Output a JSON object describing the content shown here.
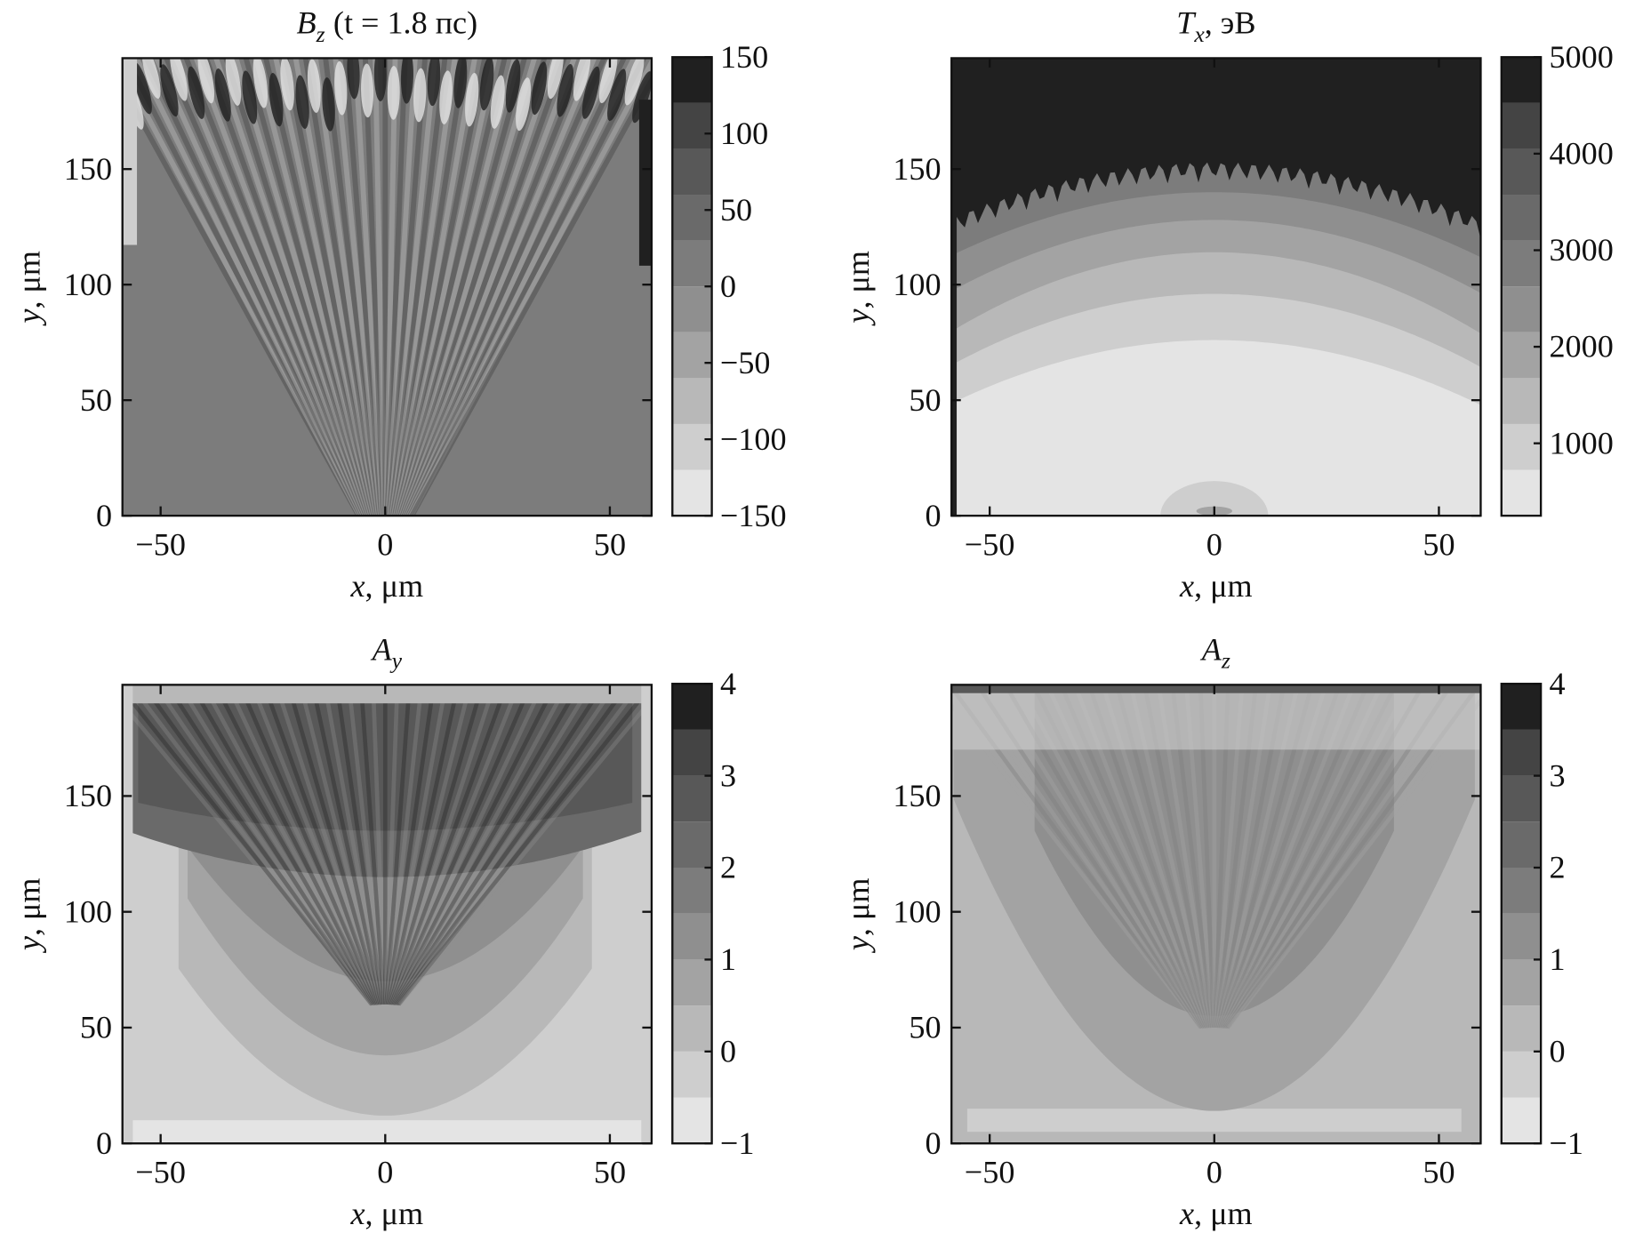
{
  "chart_data": [
    {
      "type": "heatmap",
      "title": {
        "symbol": "B",
        "subscript": "z",
        "text": "(t = 1.8 пс)"
      },
      "xlabel": {
        "symbol": "x",
        "text": ", μm"
      },
      "ylabel": {
        "symbol": "y",
        "text": ", μm"
      },
      "xlim": [
        -58.5,
        59.3
      ],
      "ylim": [
        0,
        198
      ],
      "xticks": [
        {
          "value": -50,
          "label": "−50"
        },
        0,
        50
      ],
      "yticks": [
        0,
        50,
        100,
        150
      ],
      "colorbar": {
        "levels": [
          -150,
          -120,
          -90,
          -60,
          -30,
          0,
          30,
          60,
          90,
          120,
          150
        ],
        "colors": [
          "#e4e4e4",
          "#cecece",
          "#b8b8b8",
          "#a3a3a3",
          "#8f8f8f",
          "#7c7c7c",
          "#6a6a6a",
          "#585858",
          "#444444",
          "#202020"
        ],
        "ticks": [
          150,
          100,
          50,
          0,
          {
            "value": -50,
            "label": "−50"
          },
          {
            "value": -100,
            "label": "−100"
          },
          {
            "value": -150,
            "label": "−150"
          }
        ]
      }
    },
    {
      "type": "heatmap",
      "title": {
        "symbol": "T",
        "subscript": "x",
        "text": ", эВ"
      },
      "xlabel": {
        "symbol": "x",
        "text": ", μm"
      },
      "ylabel": {
        "symbol": "y",
        "text": ", μm"
      },
      "xlim": [
        -58.5,
        59.3
      ],
      "ylim": [
        0,
        198
      ],
      "xticks": [
        {
          "value": -50,
          "label": "−50"
        },
        0,
        50
      ],
      "yticks": [
        0,
        50,
        100,
        150
      ],
      "colorbar": {
        "levels": [
          250,
          725,
          1200,
          1675,
          2150,
          2625,
          3100,
          3575,
          4050,
          4525,
          5000
        ],
        "colors": [
          "#e4e4e4",
          "#cecece",
          "#b8b8b8",
          "#a3a3a3",
          "#8f8f8f",
          "#7c7c7c",
          "#6a6a6a",
          "#585858",
          "#444444",
          "#202020"
        ],
        "ticks": [
          5000,
          4000,
          3000,
          2000,
          1000
        ]
      }
    },
    {
      "type": "heatmap",
      "title": {
        "symbol": "A",
        "subscript": "y"
      },
      "xlabel": {
        "symbol": "x",
        "text": ", μm"
      },
      "ylabel": {
        "symbol": "y",
        "text": ", μm"
      },
      "xlim": [
        -58.5,
        59.3
      ],
      "ylim": [
        0,
        198
      ],
      "xticks": [
        {
          "value": -50,
          "label": "−50"
        },
        0,
        50
      ],
      "yticks": [
        0,
        50,
        100,
        150
      ],
      "colorbar": {
        "levels": [
          -1,
          -0.5,
          0,
          0.5,
          1,
          1.5,
          2,
          2.5,
          3,
          3.5,
          4
        ],
        "colors": [
          "#e4e4e4",
          "#cecece",
          "#b8b8b8",
          "#a3a3a3",
          "#8f8f8f",
          "#7c7c7c",
          "#6a6a6a",
          "#585858",
          "#444444",
          "#202020"
        ],
        "ticks": [
          4,
          3,
          2,
          1,
          0,
          {
            "value": -1,
            "label": "−1"
          }
        ]
      }
    },
    {
      "type": "heatmap",
      "title": {
        "symbol": "A",
        "subscript": "z"
      },
      "xlabel": {
        "symbol": "x",
        "text": ", μm"
      },
      "ylabel": {
        "symbol": "y",
        "text": ", μm"
      },
      "xlim": [
        -58.5,
        59.3
      ],
      "ylim": [
        0,
        198
      ],
      "xticks": [
        {
          "value": -50,
          "label": "−50"
        },
        0,
        50
      ],
      "yticks": [
        0,
        50,
        100,
        150
      ],
      "colorbar": {
        "levels": [
          -1,
          -0.5,
          0,
          0.5,
          1,
          1.5,
          2,
          2.5,
          3,
          3.5,
          4
        ],
        "colors": [
          "#e4e4e4",
          "#cecece",
          "#b8b8b8",
          "#a3a3a3",
          "#8f8f8f",
          "#7c7c7c",
          "#6a6a6a",
          "#585858",
          "#444444",
          "#202020"
        ],
        "ticks": [
          4,
          3,
          2,
          1,
          0,
          {
            "value": -1,
            "label": "−1"
          }
        ]
      }
    }
  ]
}
